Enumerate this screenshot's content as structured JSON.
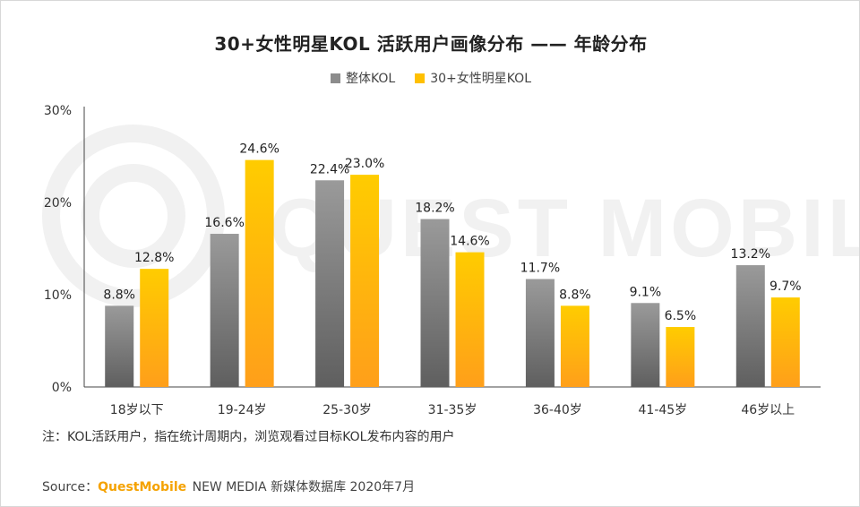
{
  "chart_data": {
    "type": "bar",
    "title": "30+女性明星KOL 活跃用户画像分布 —— 年龄分布",
    "categories": [
      "18岁以下",
      "19-24岁",
      "25-30岁",
      "31-35岁",
      "36-40岁",
      "41-45岁",
      "46岁以上"
    ],
    "series": [
      {
        "name": "整体KOL",
        "values": [
          8.8,
          16.6,
          22.4,
          18.2,
          11.7,
          9.1,
          13.2
        ],
        "labels": [
          "8.8%",
          "16.6%",
          "22.4%",
          "18.2%",
          "11.7%",
          "9.1%",
          "13.2%"
        ],
        "color": "#8c8c8c"
      },
      {
        "name": "30+女性明星KOL",
        "values": [
          12.8,
          24.6,
          23.0,
          14.6,
          8.8,
          6.5,
          9.7
        ],
        "labels": [
          "12.8%",
          "24.6%",
          "23.0%",
          "14.6%",
          "8.8%",
          "6.5%",
          "9.7%"
        ],
        "color": "#ffc000"
      }
    ],
    "yticks": [
      0,
      10,
      20,
      30
    ],
    "ytick_labels": [
      "0%",
      "10%",
      "20%",
      "30%"
    ],
    "ylim": [
      0,
      30
    ],
    "xlabel": "",
    "ylabel": "",
    "legend": "top-center",
    "grid": false
  },
  "note": "注：KOL活跃用户，指在统计周期内，浏览观看过目标KOL发布内容的用户",
  "source": {
    "label": "Source：",
    "brand": "QuestMobile",
    "rest": " NEW MEDIA 新媒体数据库 2020年7月"
  },
  "watermark_text": "QUEST MOBILE"
}
